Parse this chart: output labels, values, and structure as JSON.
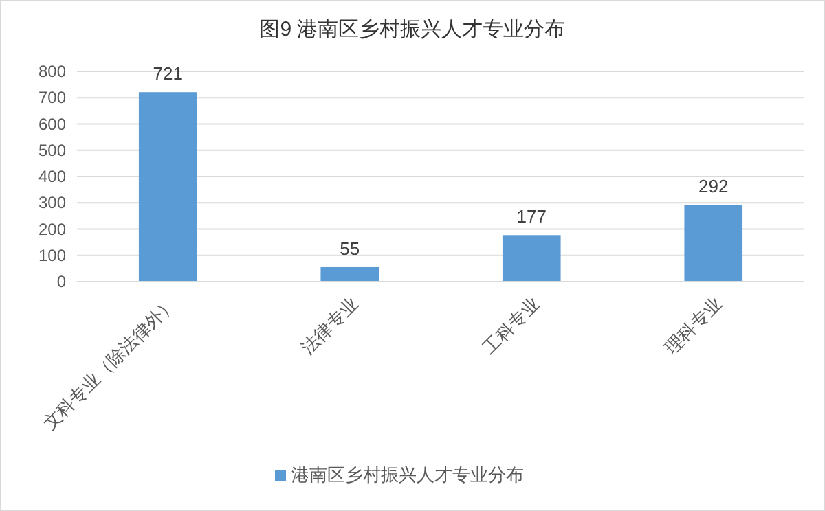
{
  "chart_data": {
    "type": "bar",
    "title": "图9 港南区乡村振兴人才专业分布",
    "categories": [
      "文科专业（除法律外）",
      "法律专业",
      "工科专业",
      "理科专业"
    ],
    "series": [
      {
        "name": "港南区乡村振兴人才专业分布",
        "color": "#5b9bd5",
        "values": [
          721,
          55,
          177,
          292
        ]
      }
    ],
    "ylim": [
      0,
      800
    ],
    "yticks": [
      0,
      100,
      200,
      300,
      400,
      500,
      600,
      700,
      800
    ],
    "grid": "y",
    "legend": "bottom",
    "data_labels": true
  }
}
